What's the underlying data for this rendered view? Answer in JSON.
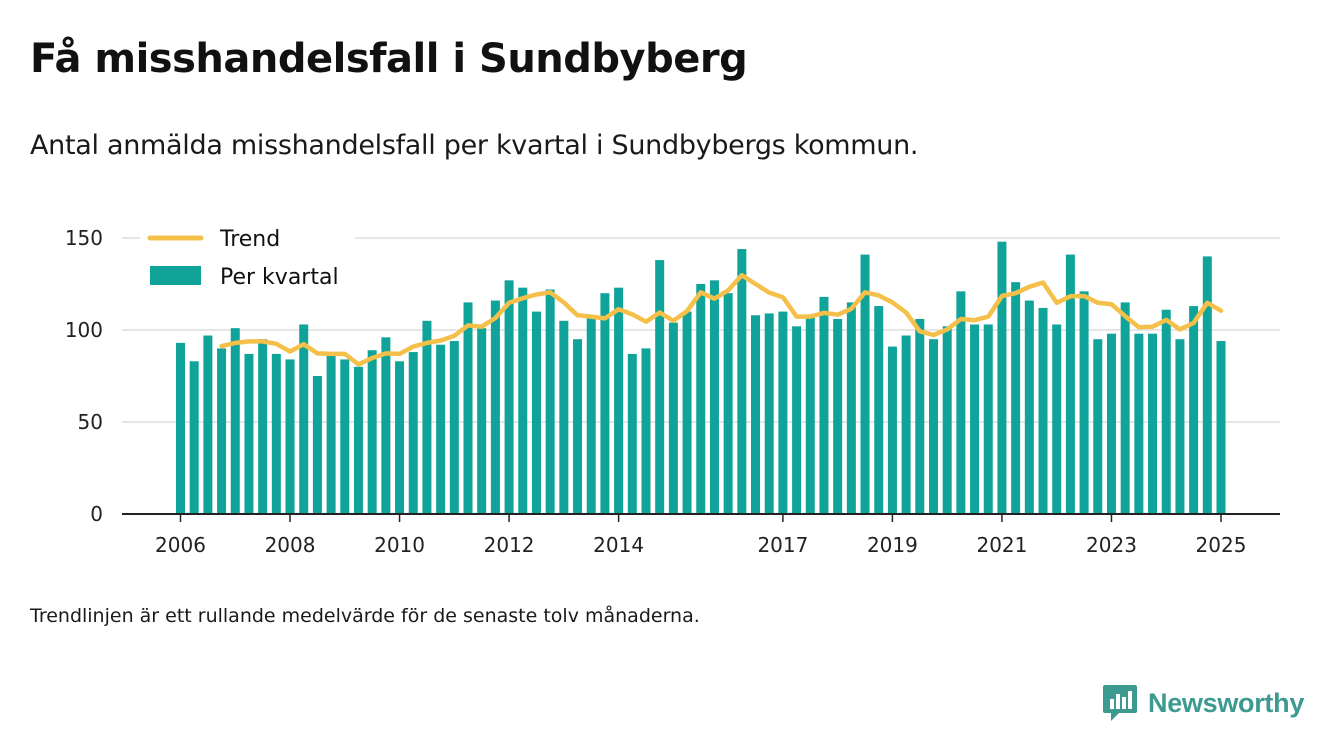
{
  "header": {
    "title": "Få misshandelsfall i Sundbyberg",
    "subtitle": "Antal anmälda misshandelsfall per kvartal i Sundbybergs kommun."
  },
  "footnote": "Trendlinjen är ett rullande medelvärde för de senaste tolv månaderna.",
  "brand": {
    "name": "Newsworthy",
    "icon": "newsworthy-logo-icon",
    "color": "#3c9a90"
  },
  "chart_data": {
    "type": "bar",
    "title": "Få misshandelsfall i Sundbyberg",
    "subtitle": "Antal anmälda misshandelsfall per kvartal i Sundbybergs kommun.",
    "xlabel": "",
    "ylabel": "",
    "ylim": [
      0,
      150
    ],
    "yticks": [
      0,
      50,
      100,
      150
    ],
    "grid": true,
    "legend_position": "top-left",
    "x_start": "2006 Q1",
    "x_end": "2025 Q1",
    "x_tick_labels": [
      {
        "label": "2006",
        "quarter": "2006 Q1"
      },
      {
        "label": "2008",
        "quarter": "2008 Q1"
      },
      {
        "label": "2010",
        "quarter": "2010 Q1"
      },
      {
        "label": "2012",
        "quarter": "2012 Q1"
      },
      {
        "label": "2014",
        "quarter": "2014 Q1"
      },
      {
        "label": "2017",
        "quarter": "2017 Q1"
      },
      {
        "label": "2019",
        "quarter": "2019 Q1"
      },
      {
        "label": "2021",
        "quarter": "2021 Q1"
      },
      {
        "label": "2023",
        "quarter": "2023 Q1"
      },
      {
        "label": "2025",
        "quarter": "2025 Q1"
      }
    ],
    "series": [
      {
        "name": "Per kvartal",
        "kind": "bar",
        "color": "#0fa39a",
        "values": [
          93,
          83,
          97,
          90,
          101,
          87,
          95,
          87,
          84,
          103,
          75,
          86,
          84,
          80,
          89,
          96,
          83,
          88,
          105,
          92,
          94,
          115,
          101,
          116,
          127,
          123,
          110,
          122,
          105,
          95,
          107,
          120,
          123,
          87,
          90,
          138,
          104,
          110,
          125,
          127,
          120,
          144,
          108,
          109,
          110,
          102,
          107,
          118,
          106,
          115,
          141,
          113,
          91,
          97,
          106,
          95,
          102,
          121,
          103,
          103,
          148,
          126,
          116,
          112,
          103,
          141,
          121,
          95,
          98,
          115,
          98,
          98,
          111,
          95,
          113,
          140,
          94
        ]
      },
      {
        "name": "Trend",
        "kind": "line",
        "color": "#f5c04a",
        "start": "2006 Q4",
        "values": [
          91.25,
          93.0,
          93.8,
          93.8,
          92.5,
          88.3,
          92.3,
          87.3,
          87.0,
          87.0,
          81.3,
          84.8,
          87.3,
          87.0,
          91.0,
          93.0,
          94.3,
          96.8,
          102.5,
          101.8,
          106.5,
          114.8,
          117.3,
          119.3,
          120.5,
          115.0,
          108.0,
          107.3,
          106.3,
          111.3,
          108.5,
          104.5,
          109.5,
          105.0,
          110.3,
          120.5,
          117.0,
          121.5,
          129.8,
          125.0,
          120.3,
          117.8,
          107.3,
          107.3,
          109.3,
          108.3,
          111.5,
          120.5,
          118.8,
          115.0,
          109.5,
          99.3,
          97.3,
          100.3,
          106.0,
          105.3,
          107.3,
          118.5,
          120.0,
          123.5,
          125.8,
          114.8,
          118.3,
          118.5,
          114.8,
          114.0,
          107.5,
          101.5,
          101.8,
          105.5,
          100.3,
          103.8,
          114.8,
          110.5
        ]
      }
    ]
  }
}
